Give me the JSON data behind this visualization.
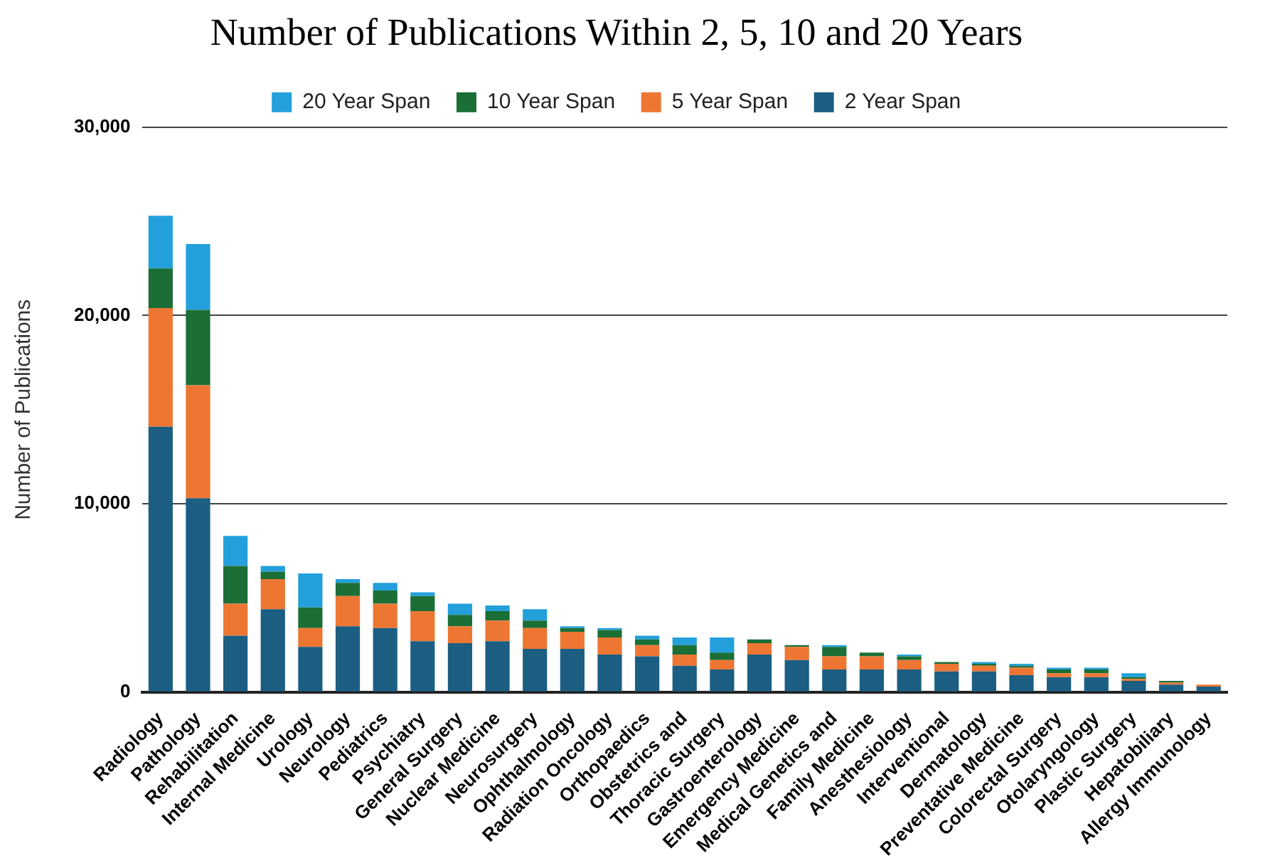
{
  "chart_data": {
    "type": "bar",
    "stacked": true,
    "title": "Number of Publications Within 2, 5, 10 and 20 Years",
    "ylabel": "Number of Publications",
    "categories": [
      "Radiology",
      "Pathology",
      "Rehabilitation",
      "Internal Medicine",
      "Urology",
      "Neurology",
      "Pediatrics",
      "Psychiatry",
      "General Surgery",
      "Nuclear Medicine",
      "Neurosurgery",
      "Ophthalmology",
      "Radiation Oncology",
      "Orthopaedics",
      "Obstetrics and",
      "Thoracic Surgery",
      "Gastroenterology",
      "Emergency Medicine",
      "Medical Genetics and",
      "Family Medicine",
      "Anesthesiology",
      "Interventional",
      "Dermatology",
      "Preventative Medicine",
      "Colorectal Surgery",
      "Otolaryngology",
      "Plastic Surgery",
      "Hepatobiliary",
      "Allergy Immunology"
    ],
    "series": [
      {
        "name": "2 Year Span",
        "color": "#1b5e82",
        "values": [
          14100,
          10300,
          3000,
          4400,
          2400,
          3500,
          3400,
          2700,
          2600,
          2700,
          2300,
          2300,
          2000,
          1900,
          1400,
          1200,
          2000,
          1700,
          1200,
          1200,
          1200,
          1100,
          1100,
          900,
          800,
          800,
          600,
          400,
          300
        ]
      },
      {
        "name": "5 Year Span",
        "color": "#ee7633",
        "values": [
          6300,
          6000,
          1700,
          1600,
          1000,
          1600,
          1300,
          1600,
          900,
          1100,
          1100,
          900,
          900,
          600,
          600,
          500,
          600,
          700,
          700,
          700,
          500,
          400,
          300,
          400,
          200,
          200,
          100,
          100,
          100
        ]
      },
      {
        "name": "10 Year Span",
        "color": "#1a6e36",
        "values": [
          2100,
          4000,
          2000,
          400,
          1100,
          700,
          700,
          800,
          600,
          500,
          400,
          200,
          400,
          300,
          500,
          400,
          200,
          100,
          500,
          200,
          200,
          100,
          100,
          100,
          200,
          200,
          100,
          100,
          0
        ]
      },
      {
        "name": "20 Year Span",
        "color": "#23a0dc",
        "values": [
          2800,
          3500,
          1600,
          300,
          1800,
          200,
          400,
          200,
          600,
          300,
          600,
          100,
          100,
          200,
          400,
          800,
          0,
          0,
          100,
          0,
          100,
          0,
          100,
          100,
          100,
          100,
          200,
          0,
          0
        ]
      }
    ],
    "ylim": [
      0,
      30000
    ],
    "yticks": [
      0,
      {
        "value": 10000,
        "label": "10,000"
      },
      {
        "value": 20000,
        "label": "20,000"
      },
      {
        "value": 30000,
        "label": "30,000"
      }
    ],
    "grid": "y",
    "legend": "top"
  }
}
